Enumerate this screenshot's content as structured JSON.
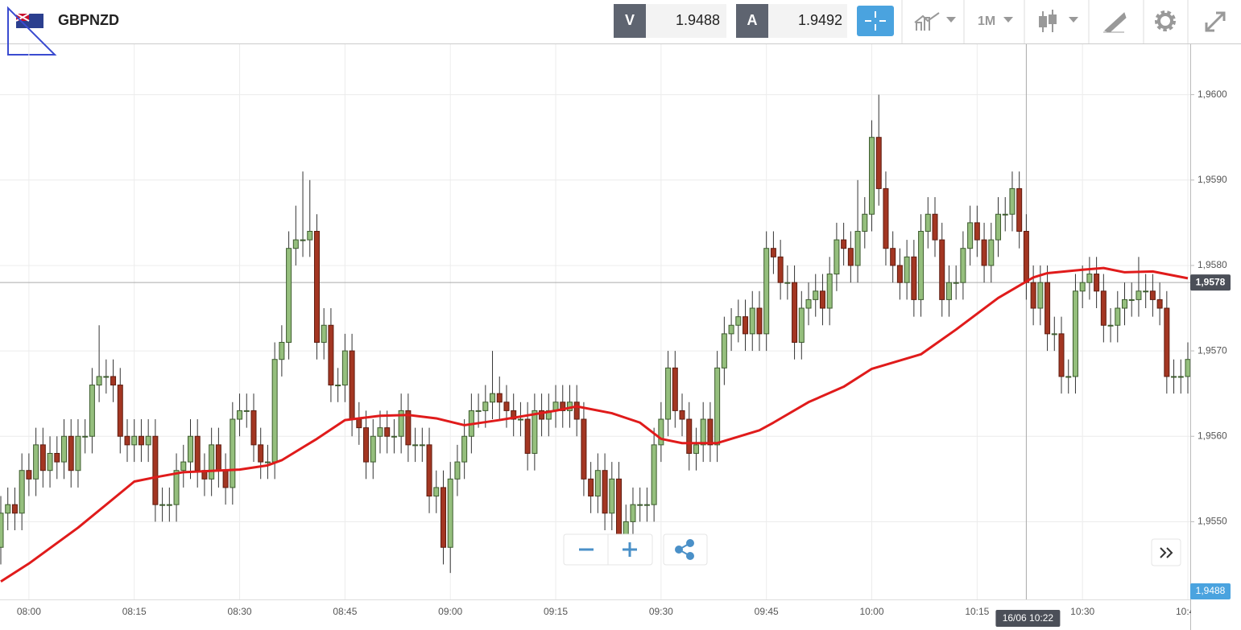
{
  "toolbar": {
    "symbol": "GBPNZD",
    "bid_label": "V",
    "bid": 1.9488,
    "ask_label": "A",
    "ask": 1.9492,
    "timeframe": "1M"
  },
  "chart_data": {
    "type": "candlestick",
    "up_color": "#95bf7d",
    "down_color": "#a33622",
    "ma_color": "#e01b1b",
    "ylim": [
      1.95409,
      1.96059
    ],
    "yticks": [
      {
        "value": 1.955,
        "label": "1,9550"
      },
      {
        "value": 1.956,
        "label": "1,9560"
      },
      {
        "value": 1.957,
        "label": "1,9570"
      },
      {
        "value": 1.958,
        "label": "1,9580"
      },
      {
        "value": 1.959,
        "label": "1,9590"
      },
      {
        "value": 1.96,
        "label": "1,9600"
      }
    ],
    "xlim": [
      0,
      169
    ],
    "xticks": [
      {
        "value": 4,
        "label": "08:00"
      },
      {
        "value": 19,
        "label": "08:15"
      },
      {
        "value": 34,
        "label": "08:30"
      },
      {
        "value": 49,
        "label": "08:45"
      },
      {
        "value": 64,
        "label": "09:00"
      },
      {
        "value": 79,
        "label": "09:15"
      },
      {
        "value": 94,
        "label": "09:30"
      },
      {
        "value": 109,
        "label": "09:45"
      },
      {
        "value": 124,
        "label": "10:00"
      },
      {
        "value": 139,
        "label": "10:15"
      },
      {
        "value": 154,
        "label": "10:30"
      },
      {
        "value": 169,
        "label": "10:45"
      }
    ],
    "grid": true,
    "open": [
      1.9547,
      1.9551,
      1.9552,
      1.9551,
      1.9556,
      1.9555,
      1.9559,
      1.9556,
      1.9558,
      1.9557,
      1.956,
      1.9556,
      1.956,
      1.956,
      1.9566,
      1.9567,
      1.9567,
      1.9566,
      1.956,
      1.9559,
      1.956,
      1.9559,
      1.956,
      1.9552,
      1.9552,
      1.9552,
      1.9556,
      1.9557,
      1.956,
      1.9556,
      1.9555,
      1.9559,
      1.9556,
      1.9554,
      1.9562,
      1.9563,
      1.9563,
      1.9559,
      1.9557,
      1.9557,
      1.9569,
      1.9571,
      1.9582,
      1.9583,
      1.9583,
      1.9584,
      1.9571,
      1.9573,
      1.9566,
      1.9566,
      1.957,
      1.9562,
      1.9561,
      1.9557,
      1.956,
      1.9561,
      1.956,
      1.956,
      1.9563,
      1.9559,
      1.9559,
      1.9559,
      1.9553,
      1.9554,
      1.9547,
      1.9555,
      1.9557,
      1.956,
      1.9563,
      1.9563,
      1.9564,
      1.9565,
      1.9564,
      1.9563,
      1.9562,
      1.9562,
      1.9558,
      1.9563,
      1.9562,
      1.9563,
      1.9564,
      1.9563,
      1.9564,
      1.9562,
      1.9555,
      1.9553,
      1.9556,
      1.9551,
      1.9555,
      1.9548,
      1.955,
      1.9552,
      1.9552,
      1.9552,
      1.9559,
      1.9562,
      1.9568,
      1.9563,
      1.9562,
      1.9558,
      1.9559,
      1.9562,
      1.9559,
      1.9568,
      1.9572,
      1.9573,
      1.9574,
      1.9572,
      1.9575,
      1.9572,
      1.9582,
      1.9581,
      1.9578,
      1.9578,
      1.9571,
      1.9575,
      1.9576,
      1.9577,
      1.9575,
      1.9579,
      1.9583,
      1.9582,
      1.958,
      1.9584,
      1.9586,
      1.9595,
      1.9589,
      1.9582,
      1.958,
      1.9578,
      1.9581,
      1.9576,
      1.9584,
      1.9586,
      1.9583,
      1.9576,
      1.9578,
      1.9578,
      1.9582,
      1.9585,
      1.9583,
      1.958,
      1.9583,
      1.9586,
      1.9586,
      1.9589,
      1.9584,
      1.9578,
      1.9575,
      1.9578,
      1.9572,
      1.9572,
      1.9567,
      1.9567,
      1.9577,
      1.9578,
      1.9579,
      1.9577,
      1.9573,
      1.9573,
      1.9575,
      1.9576,
      1.9576,
      1.9577,
      1.9577,
      1.9576,
      1.9575,
      1.9567,
      1.9567,
      1.9567
    ],
    "high": [
      1.9553,
      1.9554,
      1.9554,
      1.9558,
      1.9558,
      1.9561,
      1.9561,
      1.956,
      1.956,
      1.9562,
      1.9562,
      1.9562,
      1.9562,
      1.9568,
      1.9573,
      1.9569,
      1.9569,
      1.9568,
      1.9562,
      1.9562,
      1.9562,
      1.9562,
      1.9562,
      1.9554,
      1.9554,
      1.9558,
      1.9559,
      1.9562,
      1.9562,
      1.9558,
      1.9561,
      1.9561,
      1.9558,
      1.9564,
      1.9565,
      1.9565,
      1.9565,
      1.9561,
      1.9559,
      1.9571,
      1.9573,
      1.9584,
      1.9587,
      1.9591,
      1.959,
      1.9586,
      1.9575,
      1.9575,
      1.9568,
      1.9572,
      1.9572,
      1.9564,
      1.9563,
      1.9562,
      1.9563,
      1.9563,
      1.9562,
      1.9565,
      1.9565,
      1.9561,
      1.9561,
      1.9561,
      1.9556,
      1.9556,
      1.9557,
      1.9559,
      1.9562,
      1.9565,
      1.9565,
      1.9566,
      1.957,
      1.9567,
      1.9566,
      1.9565,
      1.9564,
      1.9564,
      1.9565,
      1.9565,
      1.9565,
      1.9566,
      1.9566,
      1.9566,
      1.9566,
      1.9564,
      1.9557,
      1.9558,
      1.9558,
      1.9557,
      1.9557,
      1.9552,
      1.9554,
      1.9554,
      1.9554,
      1.9561,
      1.9564,
      1.957,
      1.957,
      1.9565,
      1.9564,
      1.9561,
      1.9564,
      1.9564,
      1.957,
      1.9574,
      1.9575,
      1.9576,
      1.9576,
      1.9577,
      1.9577,
      1.9584,
      1.9584,
      1.9583,
      1.958,
      1.958,
      1.9577,
      1.9578,
      1.9579,
      1.9579,
      1.9581,
      1.9585,
      1.9585,
      1.9584,
      1.959,
      1.9588,
      1.9597,
      1.96,
      1.9591,
      1.9584,
      1.9582,
      1.9583,
      1.9583,
      1.9586,
      1.9588,
      1.9588,
      1.9585,
      1.958,
      1.958,
      1.9584,
      1.9587,
      1.9587,
      1.9585,
      1.9585,
      1.9588,
      1.9588,
      1.9591,
      1.9591,
      1.9586,
      1.958,
      1.958,
      1.958,
      1.9574,
      1.9574,
      1.9569,
      1.9579,
      1.958,
      1.9581,
      1.9581,
      1.9579,
      1.9575,
      1.9577,
      1.9578,
      1.9578,
      1.9581,
      1.9579,
      1.9579,
      1.9578,
      1.9577,
      1.9569,
      1.9569,
      1.9571
    ],
    "low": [
      1.9545,
      1.9549,
      1.9549,
      1.9549,
      1.9553,
      1.9553,
      1.9554,
      1.9554,
      1.9555,
      1.9555,
      1.9554,
      1.9554,
      1.9558,
      1.9558,
      1.9564,
      1.9565,
      1.9564,
      1.9558,
      1.9557,
      1.9557,
      1.9557,
      1.9557,
      1.955,
      1.955,
      1.955,
      1.955,
      1.9554,
      1.9555,
      1.9554,
      1.9553,
      1.9553,
      1.9554,
      1.9552,
      1.9552,
      1.956,
      1.9561,
      1.9557,
      1.9555,
      1.9555,
      1.9555,
      1.9567,
      1.9569,
      1.958,
      1.9581,
      1.9581,
      1.9569,
      1.9569,
      1.9564,
      1.9564,
      1.9564,
      1.956,
      1.9559,
      1.9555,
      1.9555,
      1.9558,
      1.9558,
      1.9558,
      1.9558,
      1.9557,
      1.9557,
      1.9557,
      1.9551,
      1.9551,
      1.9545,
      1.9544,
      1.9553,
      1.9555,
      1.9558,
      1.9561,
      1.9561,
      1.9562,
      1.9562,
      1.9561,
      1.956,
      1.956,
      1.9556,
      1.9556,
      1.956,
      1.956,
      1.9561,
      1.9561,
      1.9561,
      1.956,
      1.9553,
      1.9551,
      1.9551,
      1.9549,
      1.9549,
      1.9546,
      1.9546,
      1.9548,
      1.955,
      1.955,
      1.955,
      1.9557,
      1.956,
      1.9561,
      1.956,
      1.9556,
      1.9556,
      1.9557,
      1.9557,
      1.9557,
      1.9566,
      1.957,
      1.9571,
      1.957,
      1.957,
      1.957,
      1.957,
      1.9579,
      1.9576,
      1.9576,
      1.9569,
      1.9569,
      1.9573,
      1.9574,
      1.9573,
      1.9573,
      1.9577,
      1.958,
      1.9578,
      1.9578,
      1.9582,
      1.9584,
      1.9587,
      1.958,
      1.9578,
      1.9576,
      1.9576,
      1.9574,
      1.9574,
      1.9582,
      1.9581,
      1.9574,
      1.9574,
      1.9576,
      1.9576,
      1.958,
      1.9581,
      1.9578,
      1.9578,
      1.9581,
      1.9584,
      1.9584,
      1.9582,
      1.9576,
      1.9573,
      1.9573,
      1.957,
      1.957,
      1.9565,
      1.9565,
      1.9565,
      1.9575,
      1.9576,
      1.9575,
      1.9571,
      1.9571,
      1.9571,
      1.9573,
      1.9574,
      1.9574,
      1.9575,
      1.9574,
      1.9573,
      1.9565,
      1.9565,
      1.9565,
      1.9565
    ],
    "close": [
      1.9551,
      1.9552,
      1.9551,
      1.9556,
      1.9555,
      1.9559,
      1.9556,
      1.9558,
      1.9557,
      1.956,
      1.9556,
      1.956,
      1.956,
      1.9566,
      1.9567,
      1.9567,
      1.9566,
      1.956,
      1.9559,
      1.956,
      1.9559,
      1.956,
      1.9552,
      1.9552,
      1.9552,
      1.9556,
      1.9557,
      1.956,
      1.9556,
      1.9555,
      1.9559,
      1.9556,
      1.9554,
      1.9562,
      1.9563,
      1.9563,
      1.9559,
      1.9557,
      1.9557,
      1.9569,
      1.9571,
      1.9582,
      1.9583,
      1.9583,
      1.9584,
      1.9571,
      1.9573,
      1.9566,
      1.9566,
      1.957,
      1.9562,
      1.9561,
      1.9557,
      1.956,
      1.9561,
      1.956,
      1.956,
      1.9563,
      1.9559,
      1.9559,
      1.9559,
      1.9553,
      1.9554,
      1.9547,
      1.9555,
      1.9557,
      1.956,
      1.9563,
      1.9563,
      1.9564,
      1.9565,
      1.9564,
      1.9563,
      1.9562,
      1.9562,
      1.9558,
      1.9563,
      1.9562,
      1.9563,
      1.9564,
      1.9563,
      1.9564,
      1.9562,
      1.9555,
      1.9553,
      1.9556,
      1.9551,
      1.9555,
      1.9548,
      1.955,
      1.9552,
      1.9552,
      1.9552,
      1.9559,
      1.9562,
      1.9568,
      1.9563,
      1.9562,
      1.9558,
      1.9559,
      1.9562,
      1.9559,
      1.9568,
      1.9572,
      1.9573,
      1.9574,
      1.9572,
      1.9575,
      1.9572,
      1.9582,
      1.9581,
      1.9578,
      1.9578,
      1.9571,
      1.9575,
      1.9576,
      1.9577,
      1.9575,
      1.9579,
      1.9583,
      1.9582,
      1.958,
      1.9584,
      1.9586,
      1.9595,
      1.9589,
      1.9582,
      1.958,
      1.9578,
      1.9581,
      1.9576,
      1.9584,
      1.9586,
      1.9583,
      1.9576,
      1.9578,
      1.9578,
      1.9582,
      1.9585,
      1.9583,
      1.958,
      1.9583,
      1.9586,
      1.9586,
      1.9589,
      1.9584,
      1.9578,
      1.9575,
      1.9578,
      1.9572,
      1.9572,
      1.9567,
      1.9567,
      1.9577,
      1.9578,
      1.9579,
      1.9577,
      1.9573,
      1.9573,
      1.9575,
      1.9576,
      1.9576,
      1.9577,
      1.9577,
      1.9576,
      1.9575,
      1.9567,
      1.9567,
      1.9567,
      1.9569
    ],
    "ma": {
      "x": [
        0,
        4,
        11,
        19,
        22,
        26,
        34,
        38,
        40,
        45,
        49,
        54,
        58,
        62,
        66,
        71,
        79,
        82,
        87,
        91,
        94,
        97,
        102,
        108,
        110,
        115,
        120,
        124,
        131,
        136,
        142,
        147,
        149,
        154,
        157,
        160,
        164,
        169
      ],
      "values": [
        1.9543,
        1.95451,
        1.95493,
        1.95547,
        1.95552,
        1.95558,
        1.95561,
        1.95566,
        1.95572,
        1.95597,
        1.95619,
        1.95624,
        1.95625,
        1.95621,
        1.95613,
        1.95619,
        1.9563,
        1.95635,
        1.95627,
        1.95616,
        1.95597,
        1.95592,
        1.95592,
        1.95607,
        1.95616,
        1.9564,
        1.95658,
        1.95679,
        1.95696,
        1.95725,
        1.95762,
        1.95786,
        1.95791,
        1.95795,
        1.95797,
        1.95792,
        1.95793,
        1.95785
      ]
    },
    "crosshair": {
      "x": 146,
      "x_label": "16/06 10:22",
      "y": 1.9578,
      "y_label": "1,9578"
    },
    "current_price": {
      "value": 1.9488,
      "label": "1,9488"
    }
  }
}
